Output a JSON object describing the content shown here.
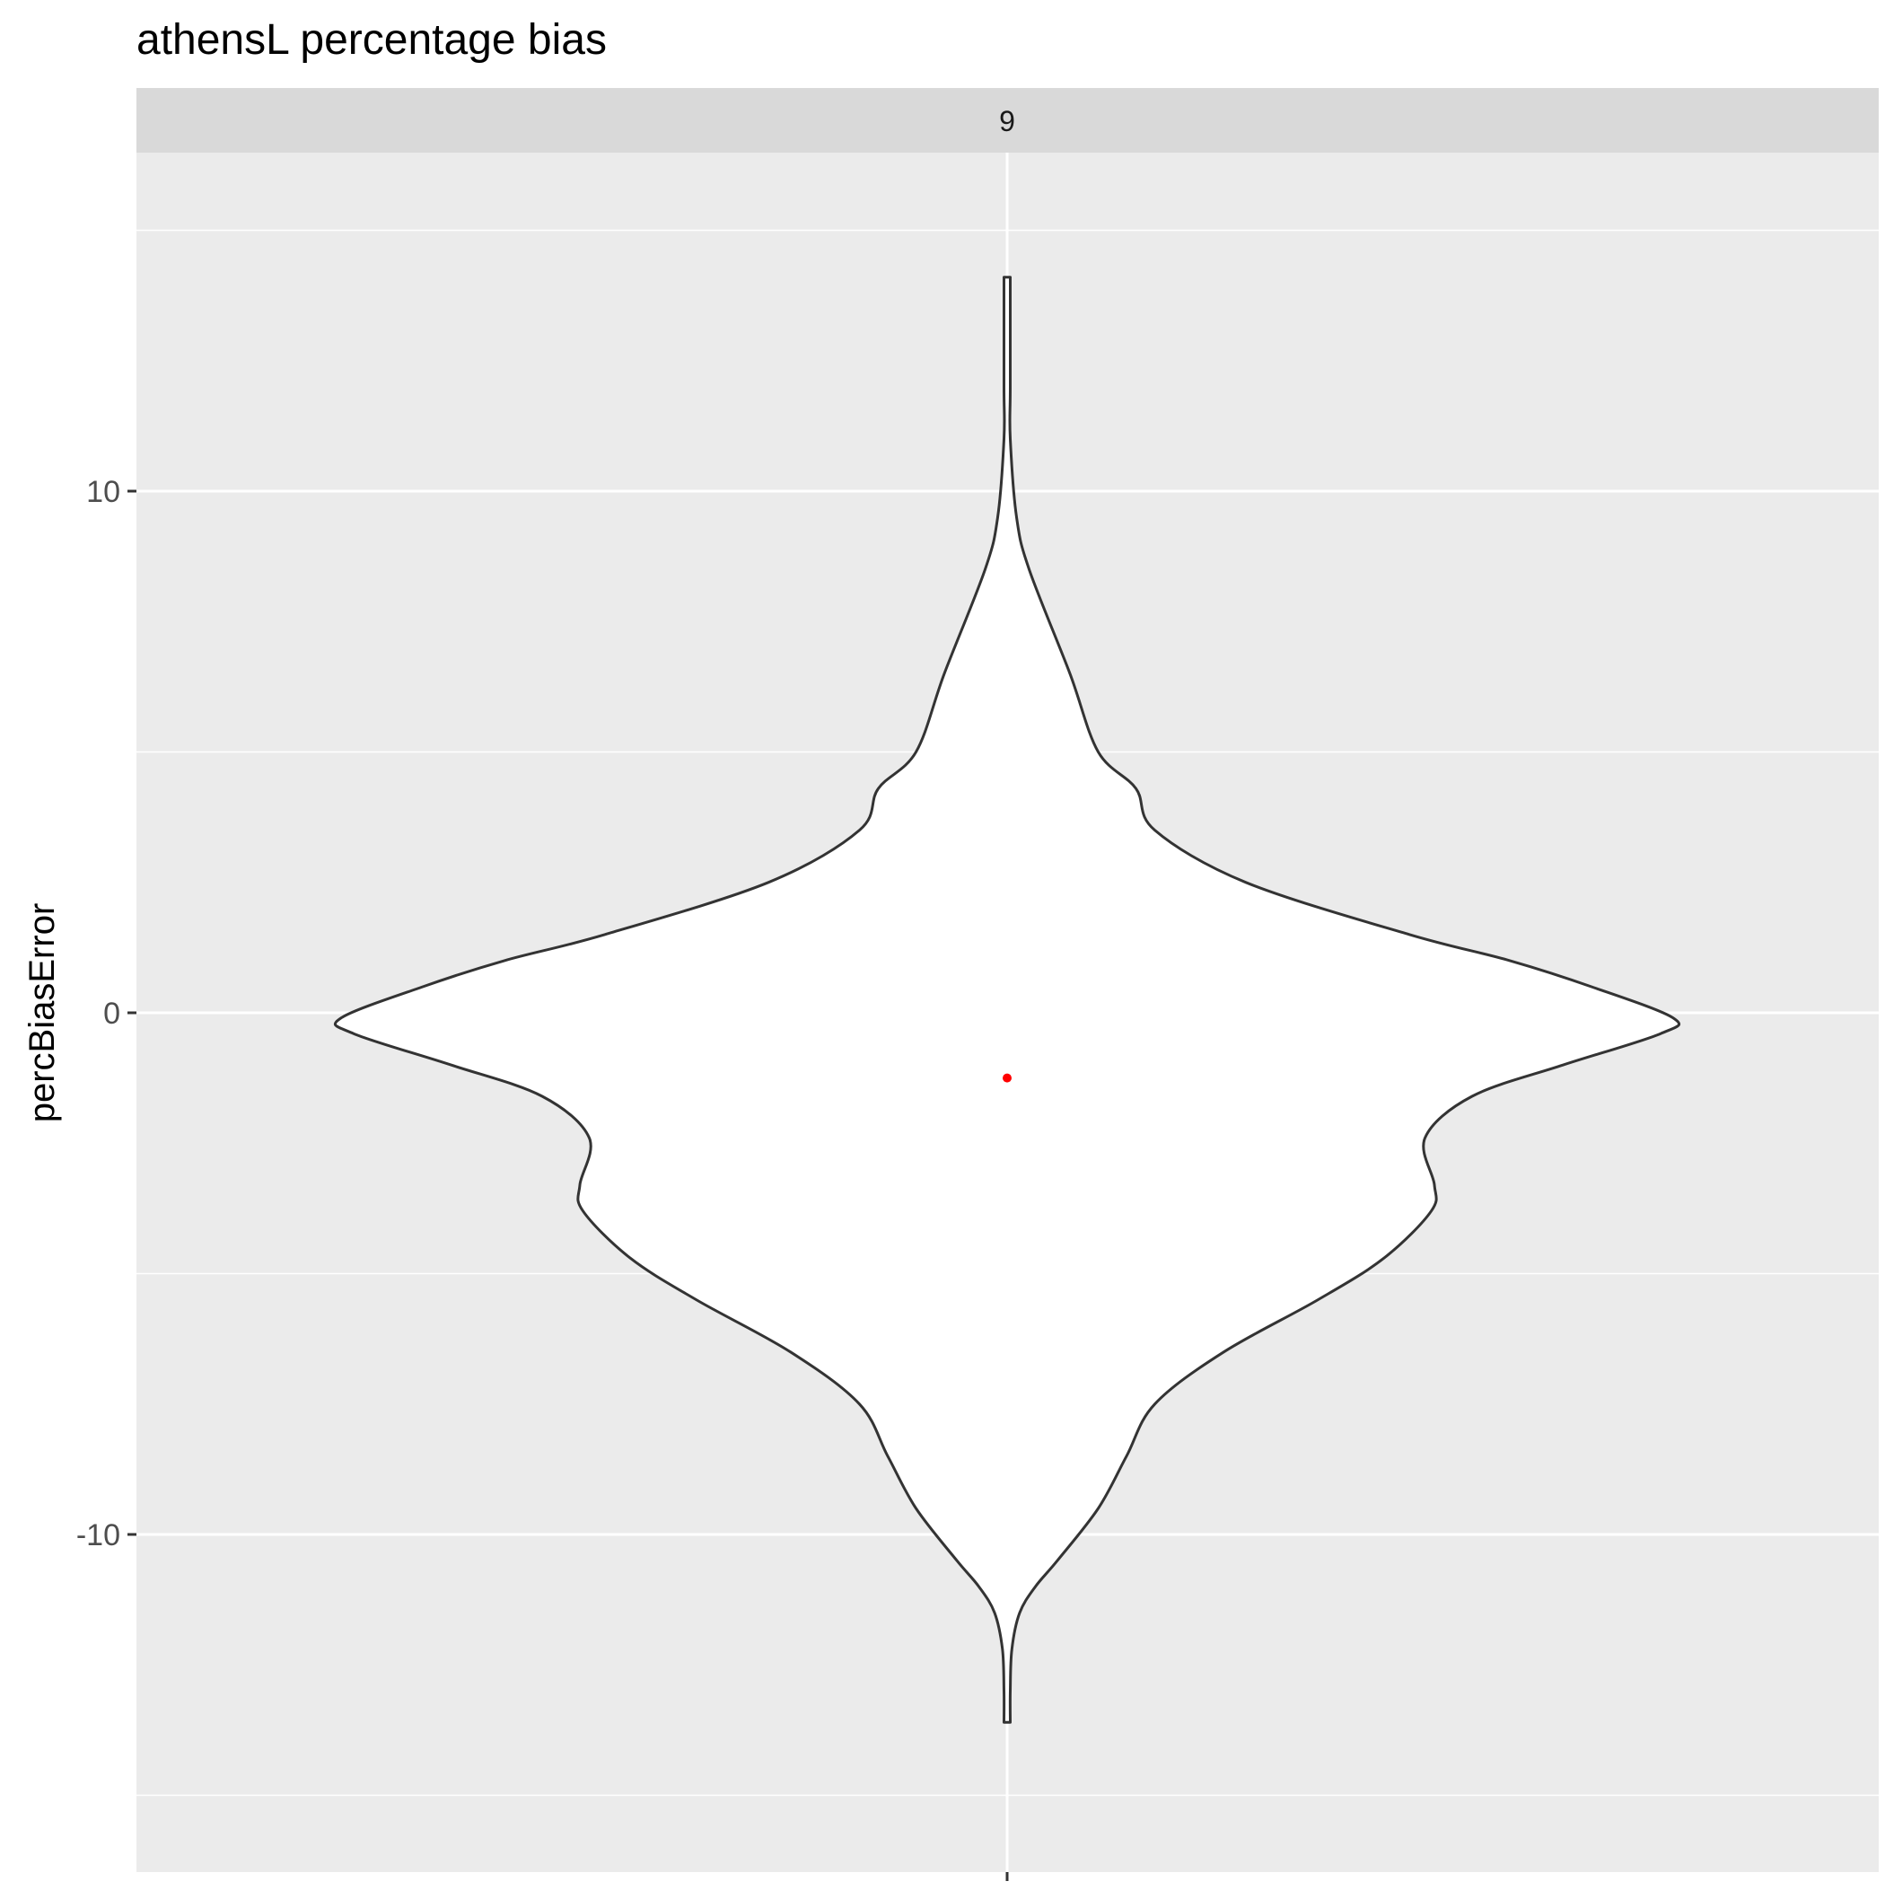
{
  "chart_data": {
    "type": "violin",
    "title": "athensL percentage bias",
    "facet_label": "9",
    "ylabel": "percBiasError",
    "xlabel": "",
    "ylim": [
      -15,
      15
    ],
    "y_major_ticks": [
      -10,
      0,
      10
    ],
    "y_minor_gridlines": [
      -15,
      -5,
      5,
      15
    ],
    "grid": true,
    "legend": "none",
    "categories": [
      "9"
    ],
    "violin": {
      "category": "9",
      "y_min": -13.6,
      "y_max": 14.1,
      "density_profile": [
        {
          "y": -13.6,
          "w": 0.01
        },
        {
          "y": -13.0,
          "w": 0.01
        },
        {
          "y": -12.2,
          "w": 0.015
        },
        {
          "y": -11.5,
          "w": 0.04
        },
        {
          "y": -11.0,
          "w": 0.09
        },
        {
          "y": -10.5,
          "w": 0.16
        },
        {
          "y": -9.5,
          "w": 0.29
        },
        {
          "y": -8.5,
          "w": 0.38
        },
        {
          "y": -7.5,
          "w": 0.47
        },
        {
          "y": -6.5,
          "w": 0.69
        },
        {
          "y": -5.5,
          "w": 0.99
        },
        {
          "y": -4.7,
          "w": 1.2
        },
        {
          "y": -3.8,
          "w": 1.35
        },
        {
          "y": -3.3,
          "w": 1.36
        },
        {
          "y": -2.4,
          "w": 1.33
        },
        {
          "y": -1.6,
          "w": 1.48
        },
        {
          "y": -1.0,
          "w": 1.77
        },
        {
          "y": -0.4,
          "w": 2.08
        },
        {
          "y": -0.1,
          "w": 2.12
        },
        {
          "y": 0.5,
          "w": 1.86
        },
        {
          "y": 1.0,
          "w": 1.6
        },
        {
          "y": 1.5,
          "w": 1.28
        },
        {
          "y": 2.5,
          "w": 0.76
        },
        {
          "y": 3.5,
          "w": 0.47
        },
        {
          "y": 4.3,
          "w": 0.41
        },
        {
          "y": 5.0,
          "w": 0.29
        },
        {
          "y": 6.5,
          "w": 0.2
        },
        {
          "y": 8.5,
          "w": 0.07
        },
        {
          "y": 9.5,
          "w": 0.03
        },
        {
          "y": 11.0,
          "w": 0.01
        },
        {
          "y": 12.0,
          "w": 0.01
        },
        {
          "y": 14.1,
          "w": 0.01
        }
      ],
      "mean_point": {
        "y": -1.25,
        "color": "#ff0000"
      },
      "fill": "#ffffff",
      "outline": "#333333"
    },
    "colors": {
      "panel_background": "#ebebeb",
      "gridline": "#ffffff",
      "strip_background": "#d9d9d9",
      "axis_text": "#4d4d4d",
      "mean_point": "#ff0000"
    }
  }
}
